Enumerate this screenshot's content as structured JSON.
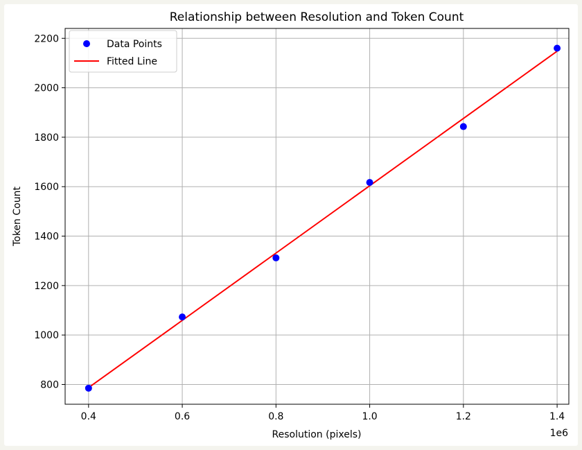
{
  "chart_data": {
    "type": "scatter",
    "title": "Relationship between Resolution and Token Count",
    "xlabel": "Resolution (pixels)",
    "ylabel": "Token Count",
    "x_offset_label": "1e6",
    "xlim": [
      0.35,
      1.425
    ],
    "ylim": [
      720,
      2240
    ],
    "x_ticks": [
      0.4,
      0.6,
      0.8,
      1.0,
      1.2,
      1.4
    ],
    "x_tick_labels": [
      "0.4",
      "0.6",
      "0.8",
      "1.0",
      "1.2",
      "1.4"
    ],
    "y_ticks": [
      800,
      1000,
      1200,
      1400,
      1600,
      1800,
      2000,
      2200
    ],
    "y_tick_labels": [
      "800",
      "1000",
      "1200",
      "1400",
      "1600",
      "1800",
      "2000",
      "2200"
    ],
    "grid": true,
    "legend_position": "upper-left",
    "series": [
      {
        "name": "Data Points",
        "kind": "scatter",
        "color": "#0000ff",
        "points": [
          {
            "x": 0.4,
            "y": 785
          },
          {
            "x": 0.6,
            "y": 1073
          },
          {
            "x": 0.8,
            "y": 1312
          },
          {
            "x": 1.0,
            "y": 1617
          },
          {
            "x": 1.2,
            "y": 1843
          },
          {
            "x": 1.4,
            "y": 2160
          }
        ]
      },
      {
        "name": "Fitted Line",
        "kind": "line",
        "color": "#ff0000",
        "points": [
          {
            "x": 0.4,
            "y": 787
          },
          {
            "x": 1.4,
            "y": 2148
          }
        ]
      }
    ]
  }
}
